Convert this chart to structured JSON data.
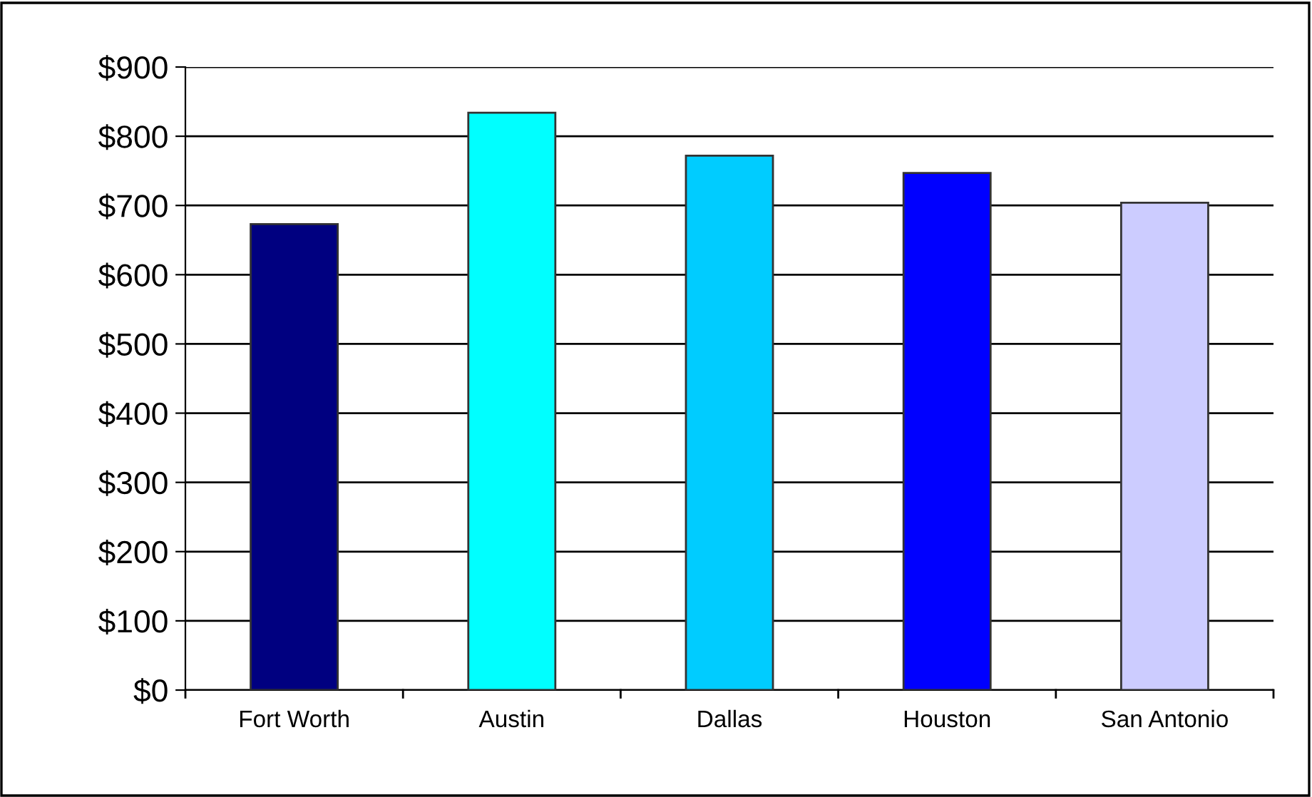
{
  "chart_data": {
    "type": "bar",
    "categories": [
      "Fort Worth",
      "Austin",
      "Dallas",
      "Houston",
      "San Antonio"
    ],
    "values": [
      673,
      834,
      772,
      747,
      704
    ],
    "colors": [
      "#000080",
      "#00ffff",
      "#00ccff",
      "#0000ff",
      "#ccccff"
    ],
    "ylim": [
      0,
      900
    ],
    "yticks": [
      {
        "value": 0,
        "label": "$0"
      },
      {
        "value": 100,
        "label": "$100"
      },
      {
        "value": 200,
        "label": "$200"
      },
      {
        "value": 300,
        "label": "$300"
      },
      {
        "value": 400,
        "label": "$400"
      },
      {
        "value": 500,
        "label": "$500"
      },
      {
        "value": 600,
        "label": "$600"
      },
      {
        "value": 700,
        "label": "$700"
      },
      {
        "value": 800,
        "label": "$800"
      },
      {
        "value": 900,
        "label": "$900"
      }
    ],
    "grid": "y"
  }
}
